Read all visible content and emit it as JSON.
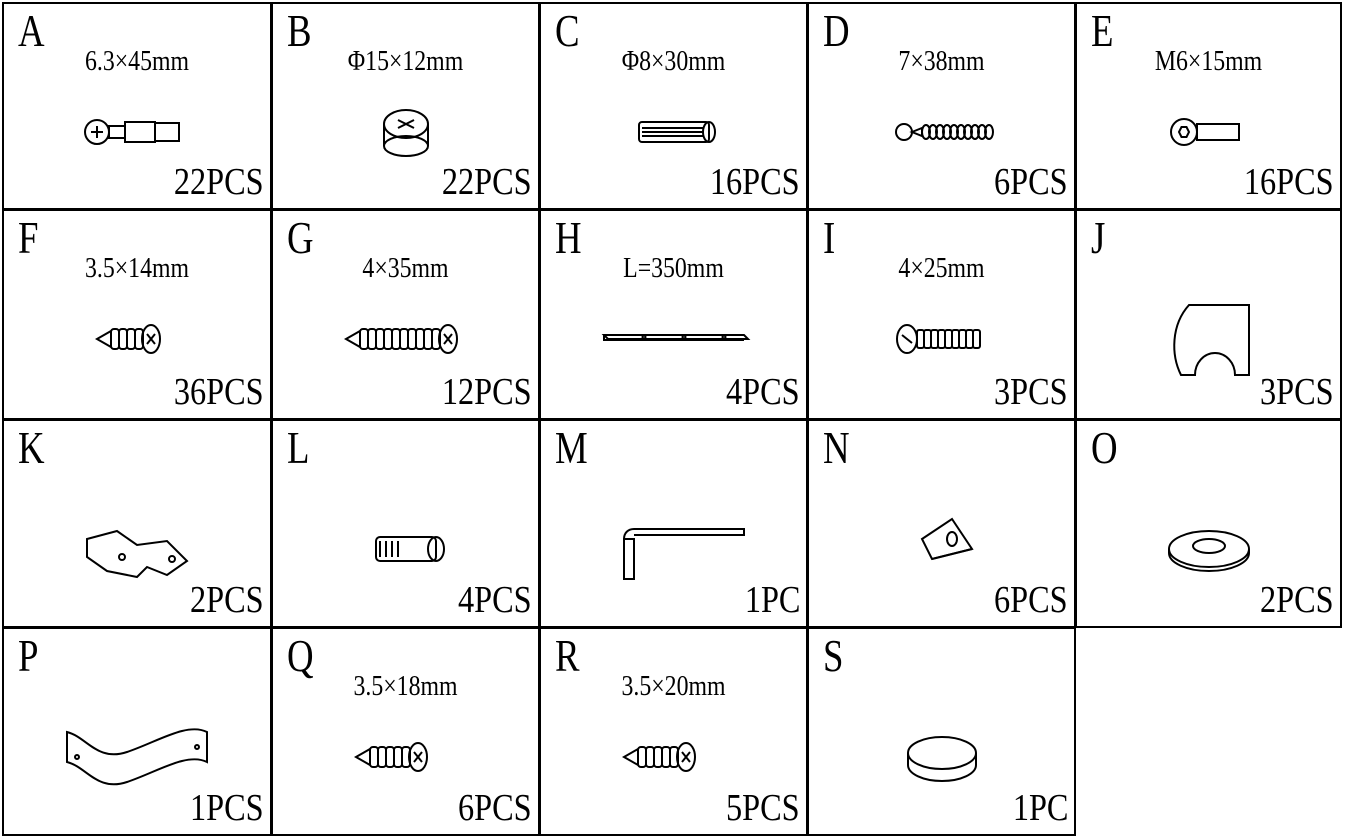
{
  "parts": [
    {
      "letter": "A",
      "spec": "6.3×45mm",
      "quantity": "22PCS"
    },
    {
      "letter": "B",
      "spec": "Φ15×12mm",
      "quantity": "22PCS"
    },
    {
      "letter": "C",
      "spec": "Φ8×30mm",
      "quantity": "16PCS"
    },
    {
      "letter": "D",
      "spec": "7×38mm",
      "quantity": "6PCS"
    },
    {
      "letter": "E",
      "spec": "M6×15mm",
      "quantity": "16PCS"
    },
    {
      "letter": "F",
      "spec": "3.5×14mm",
      "quantity": "36PCS"
    },
    {
      "letter": "G",
      "spec": "4×35mm",
      "quantity": "12PCS"
    },
    {
      "letter": "H",
      "spec": "L=350mm",
      "quantity": "4PCS"
    },
    {
      "letter": "I",
      "spec": "4×25mm",
      "quantity": "3PCS"
    },
    {
      "letter": "J",
      "quantity": "3PCS"
    },
    {
      "letter": "K",
      "quantity": "2PCS"
    },
    {
      "letter": "L",
      "quantity": "4PCS"
    },
    {
      "letter": "M",
      "quantity": "1PC"
    },
    {
      "letter": "N",
      "quantity": "6PCS"
    },
    {
      "letter": "O",
      "quantity": "2PCS"
    },
    {
      "letter": "P",
      "quantity": "1PCS"
    },
    {
      "letter": "Q",
      "spec": "3.5×18mm",
      "quantity": "6PCS"
    },
    {
      "letter": "R",
      "spec": "3.5×20mm",
      "quantity": "5PCS"
    },
    {
      "letter": "S",
      "quantity": "1PC"
    }
  ]
}
